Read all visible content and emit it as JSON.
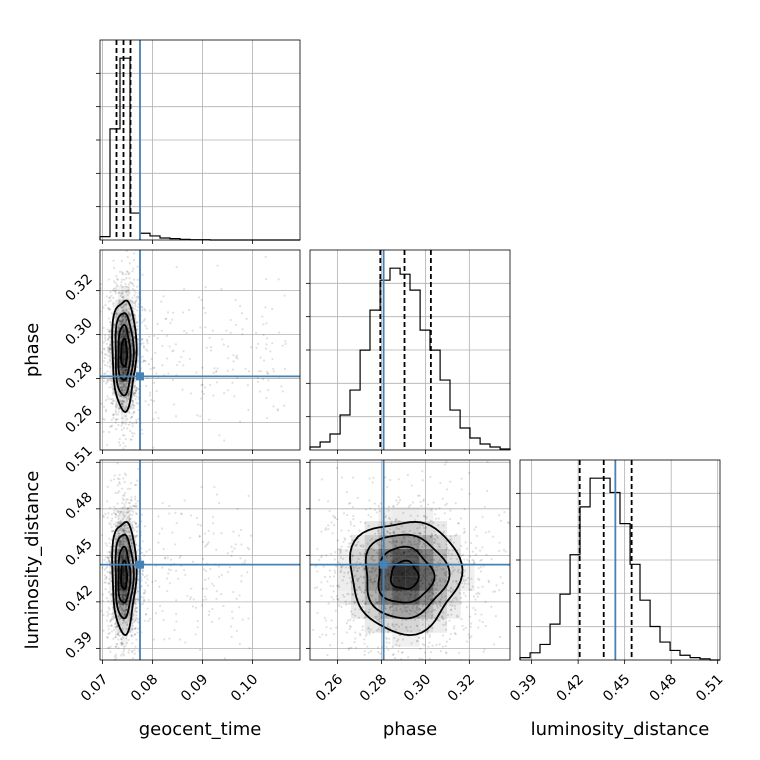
{
  "chart_data": {
    "type": "corner",
    "parameters": [
      "geocent_time",
      "phase",
      "luminosity_distance"
    ],
    "truth_color": "#4682b4",
    "truths": {
      "geocent_time": 0.0775,
      "phase": 0.281,
      "luminosity_distance": 0.444
    },
    "ranges": {
      "geocent_time": [
        0.0695,
        0.1095
      ],
      "phase": [
        0.2475,
        0.3385
      ],
      "luminosity_distance": [
        0.3825,
        0.5115
      ]
    },
    "ticks": {
      "geocent_time": {
        "values": [
          0.07,
          0.08,
          0.09,
          0.1
        ],
        "labels": [
          "0.07",
          "0.08",
          "0.09",
          "0.10"
        ]
      },
      "phase": {
        "values": [
          0.26,
          0.28,
          0.3,
          0.32
        ],
        "labels": [
          "0.26",
          "0.28",
          "0.30",
          "0.32"
        ]
      },
      "luminosity_distance": {
        "values": [
          0.39,
          0.42,
          0.45,
          0.48,
          0.51
        ],
        "labels": [
          "0.39",
          "0.42",
          "0.45",
          "0.48",
          "0.51"
        ]
      }
    },
    "histograms": {
      "geocent_time": {
        "edges": [
          0.0695,
          0.0715,
          0.0735,
          0.0755,
          0.0775,
          0.0795,
          0.0815,
          0.0835,
          0.0855,
          0.0875,
          0.0895,
          0.0915,
          0.0935,
          0.0955,
          0.0975,
          0.0995,
          0.1015,
          0.1035,
          0.1055,
          0.1075,
          0.1095
        ],
        "counts": [
          10,
          330,
          540,
          80,
          20,
          12,
          6,
          4,
          2,
          1,
          1,
          0,
          0,
          0,
          0,
          0,
          0,
          0,
          0,
          0
        ],
        "quantiles": [
          0.0728,
          0.0742,
          0.0756
        ]
      },
      "phase": {
        "edges": [
          0.2475,
          0.2521,
          0.2566,
          0.2612,
          0.2657,
          0.2703,
          0.2748,
          0.2794,
          0.2839,
          0.2885,
          0.293,
          0.2976,
          0.3021,
          0.3067,
          0.3112,
          0.3158,
          0.3203,
          0.3249,
          0.3294,
          0.334,
          0.3385
        ],
        "counts": [
          3,
          8,
          16,
          35,
          60,
          100,
          140,
          170,
          182,
          176,
          160,
          120,
          100,
          70,
          40,
          22,
          12,
          6,
          3,
          1
        ],
        "quantiles": [
          0.2795,
          0.2905,
          0.3025
        ]
      },
      "luminosity_distance": {
        "edges": [
          0.3825,
          0.389,
          0.3954,
          0.4019,
          0.4083,
          0.4148,
          0.4212,
          0.4277,
          0.4341,
          0.4406,
          0.447,
          0.4535,
          0.4599,
          0.4664,
          0.4728,
          0.4793,
          0.4857,
          0.4922,
          0.4986,
          0.5051,
          0.5115
        ],
        "counts": [
          2,
          6,
          13,
          30,
          55,
          88,
          128,
          152,
          152,
          140,
          114,
          80,
          50,
          28,
          15,
          8,
          4,
          2,
          1,
          0
        ],
        "quantiles": [
          0.421,
          0.4365,
          0.4545
        ]
      }
    },
    "joint": {
      "phase_vs_geocent_time": {
        "center": [
          0.0743,
          0.2915
        ],
        "sigma": [
          0.0012,
          0.0125
        ],
        "outlier_x_max": 0.105
      },
      "luminosity_distance_vs_geocent_time": {
        "center": [
          0.0743,
          0.437
        ],
        "sigma": [
          0.0012,
          0.018
        ],
        "outlier_x_max": 0.098
      },
      "luminosity_distance_vs_phase": {
        "center": [
          0.2905,
          0.437
        ],
        "sigma": [
          0.0125,
          0.018
        ],
        "outlier_x_max": 0.335
      }
    }
  }
}
